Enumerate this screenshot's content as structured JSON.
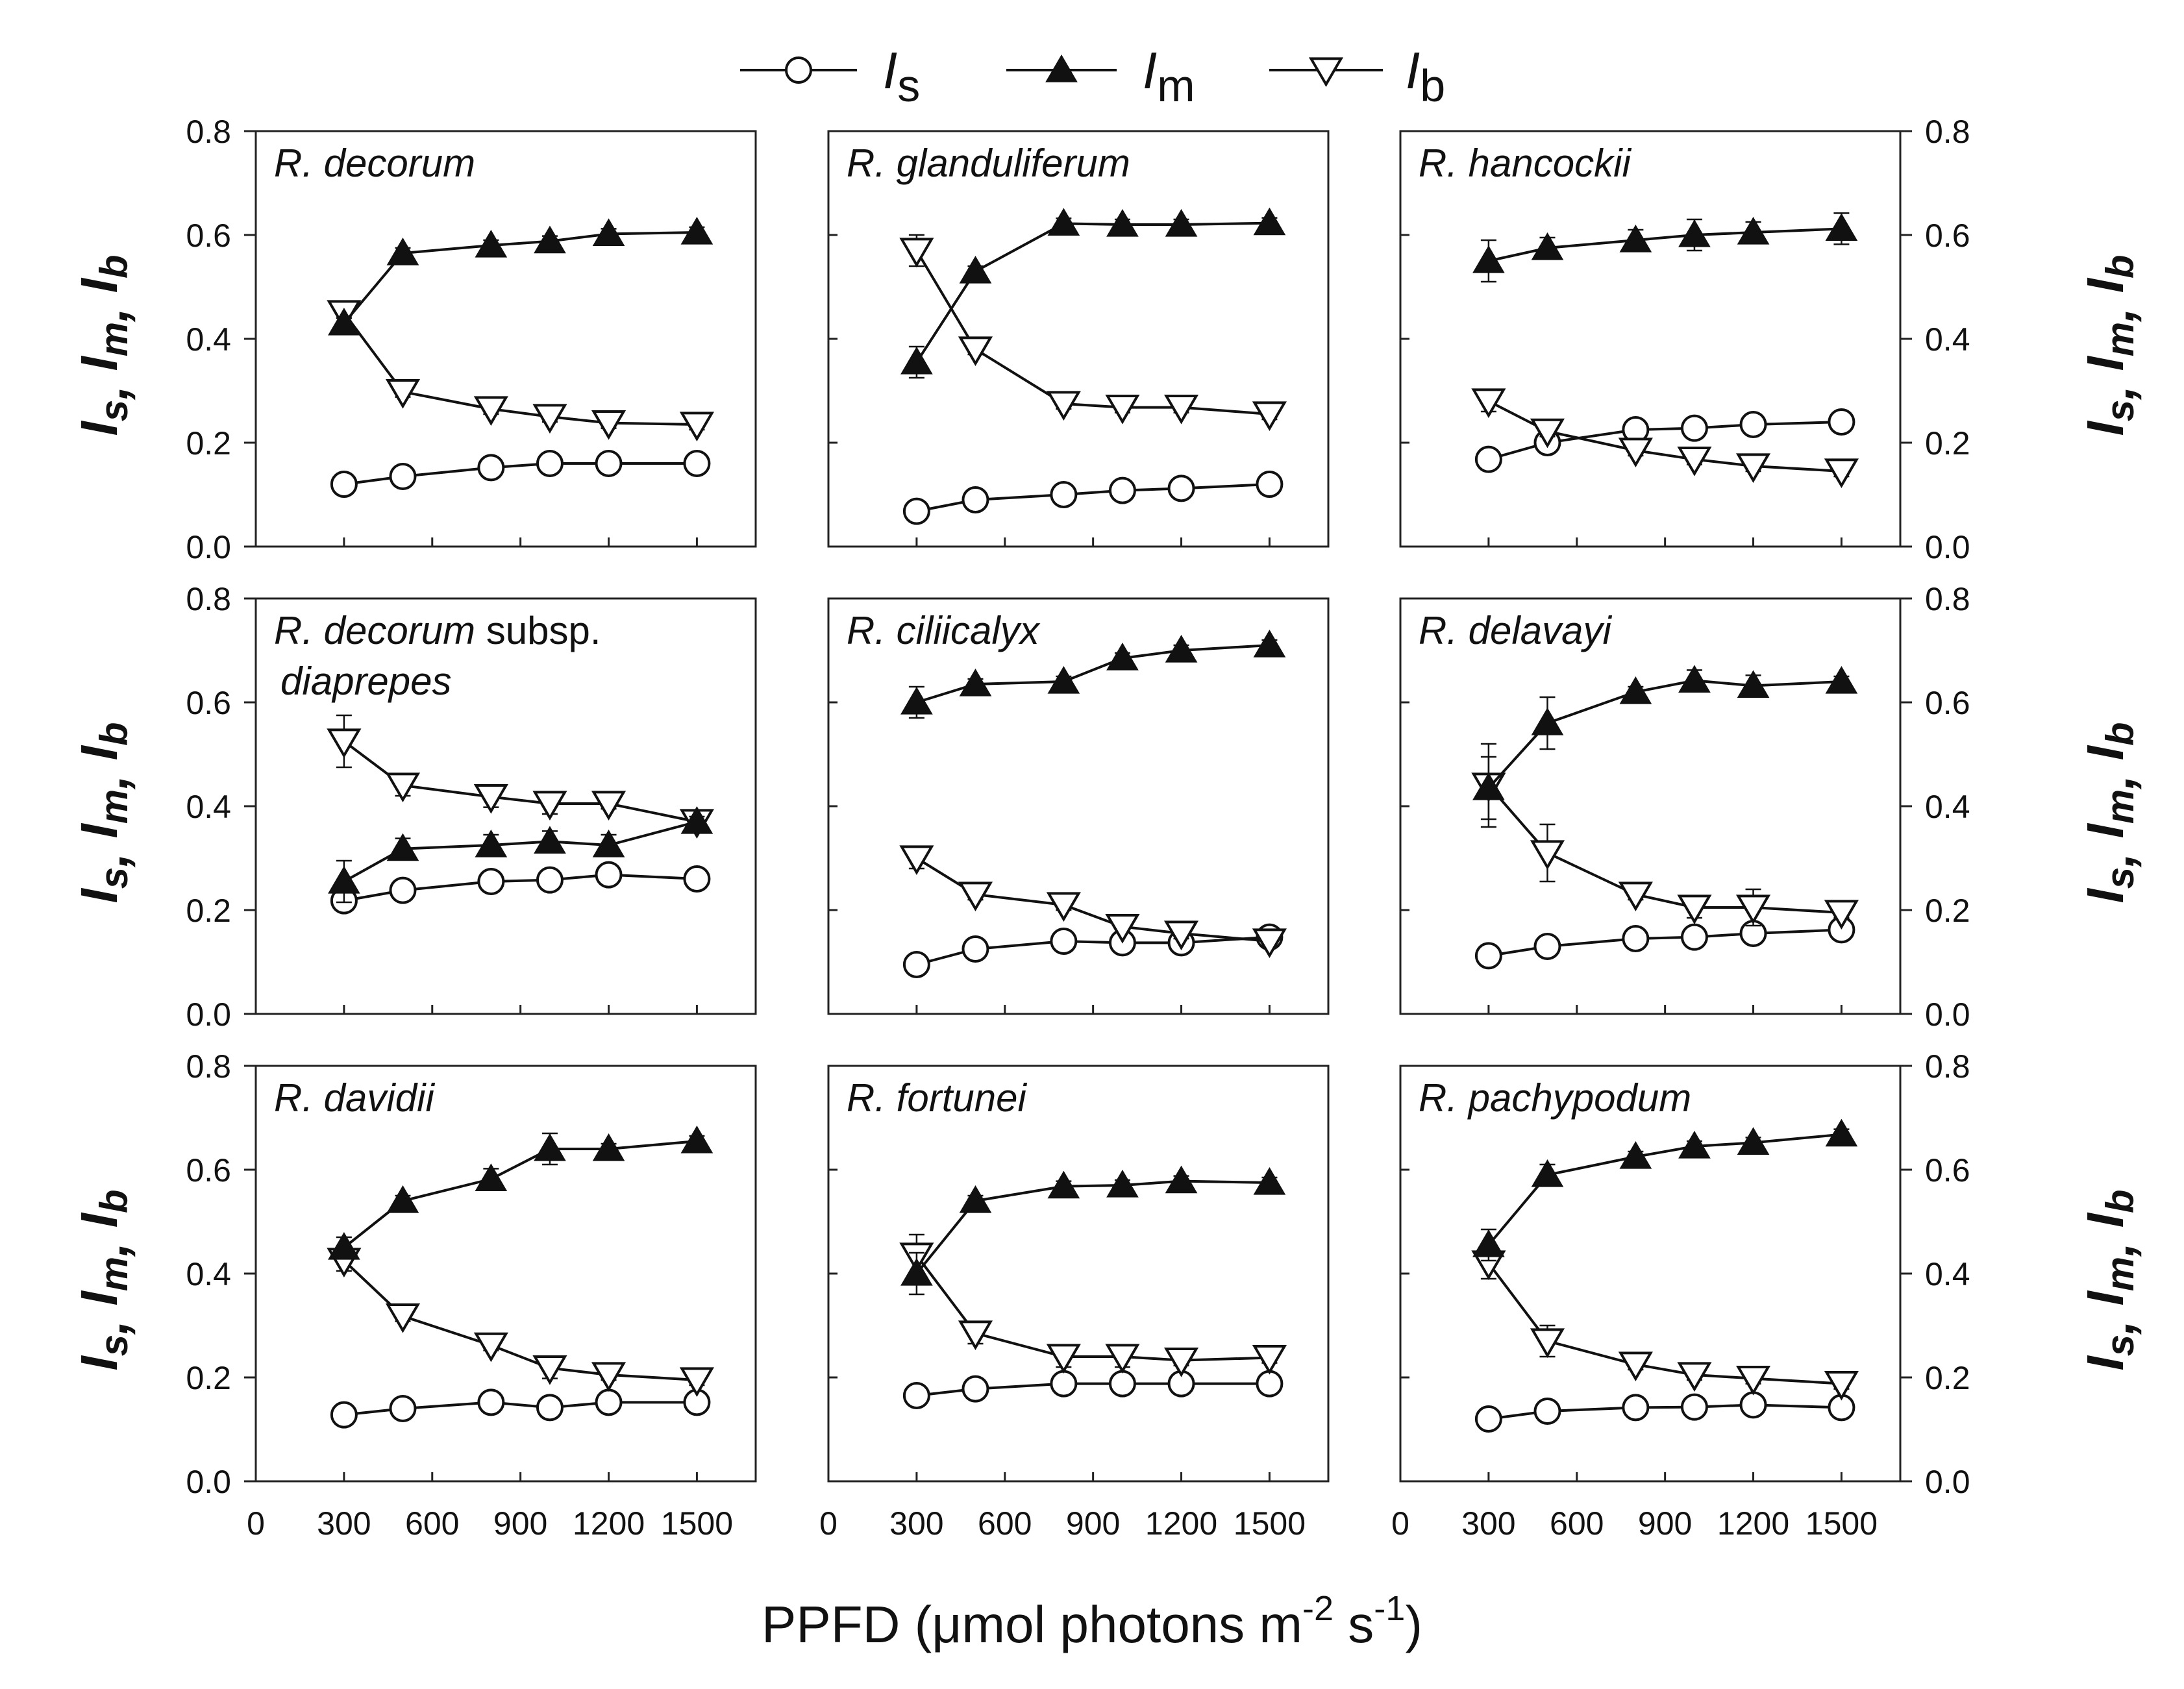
{
  "chart_data": {
    "type": "line",
    "layout": "3x3 panel grid",
    "xlabel": "PPFD (μmol photons m",
    "xlabel_sup1": "-2",
    "xlabel_mid": " s",
    "xlabel_sup2": "-1",
    "xlabel_end": ")",
    "ylabel": "I",
    "ylabel_subs": [
      "s",
      "m",
      "b"
    ],
    "xticks": [
      0,
      300,
      600,
      900,
      1200,
      1500
    ],
    "xticklabels": [
      "0",
      "300",
      "600",
      "900",
      "1200",
      "1500"
    ],
    "xlim": [
      0,
      1700
    ],
    "yticks": [
      0.0,
      0.2,
      0.4,
      0.6,
      0.8
    ],
    "yticklabels": [
      "0.0",
      "0.2",
      "0.4",
      "0.6",
      "0.8"
    ],
    "ylim": [
      0,
      0.8
    ],
    "x": [
      300,
      500,
      800,
      1000,
      1200,
      1500
    ],
    "legend": [
      {
        "key": "Is",
        "base": "I",
        "sub": "s",
        "marker": "circle-open"
      },
      {
        "key": "Im",
        "base": "I",
        "sub": "m",
        "marker": "triangle-up-filled"
      },
      {
        "key": "Ib",
        "base": "I",
        "sub": "b",
        "marker": "triangle-down-open"
      }
    ],
    "panels": [
      {
        "title": "R. decorum",
        "series": {
          "Is": {
            "values": [
              0.12,
              0.135,
              0.152,
              0.16,
              0.16,
              0.16
            ],
            "errors": [
              0.005,
              0.005,
              0.005,
              0.005,
              0.005,
              0.005
            ]
          },
          "Im": {
            "values": [
              0.43,
              0.565,
              0.58,
              0.588,
              0.602,
              0.605
            ],
            "errors": [
              0.01,
              0.01,
              0.01,
              0.01,
              0.01,
              0.01
            ]
          },
          "Ib": {
            "values": [
              0.45,
              0.298,
              0.265,
              0.25,
              0.238,
              0.235
            ],
            "errors": [
              0.01,
              0.01,
              0.01,
              0.01,
              0.01,
              0.01
            ]
          }
        }
      },
      {
        "title": "R. glanduliferum",
        "series": {
          "Is": {
            "values": [
              0.068,
              0.09,
              0.1,
              0.108,
              0.112,
              0.12
            ],
            "errors": [
              0.005,
              0.005,
              0.005,
              0.005,
              0.005,
              0.005
            ]
          },
          "Im": {
            "values": [
              0.355,
              0.53,
              0.622,
              0.62,
              0.62,
              0.623
            ],
            "errors": [
              0.03,
              0.01,
              0.01,
              0.01,
              0.01,
              0.01
            ]
          },
          "Ib": {
            "values": [
              0.57,
              0.38,
              0.275,
              0.268,
              0.268,
              0.255
            ],
            "errors": [
              0.03,
              0.01,
              0.01,
              0.01,
              0.01,
              0.01
            ]
          }
        }
      },
      {
        "title": "R. hancockii",
        "series": {
          "Is": {
            "values": [
              0.168,
              0.2,
              0.225,
              0.228,
              0.235,
              0.24
            ],
            "errors": [
              0.005,
              0.005,
              0.005,
              0.005,
              0.005,
              0.005
            ]
          },
          "Im": {
            "values": [
              0.55,
              0.575,
              0.59,
              0.6,
              0.605,
              0.612
            ],
            "errors": [
              0.04,
              0.02,
              0.02,
              0.03,
              0.02,
              0.03
            ]
          },
          "Ib": {
            "values": [
              0.28,
              0.222,
              0.185,
              0.168,
              0.155,
              0.145
            ],
            "errors": [
              0.02,
              0.01,
              0.01,
              0.01,
              0.01,
              0.01
            ]
          }
        }
      },
      {
        "title": "R. decorum",
        "title_suffix": " subsp.",
        "title_line2": "diaprepes",
        "series": {
          "Is": {
            "values": [
              0.218,
              0.238,
              0.255,
              0.258,
              0.268,
              0.26
            ],
            "errors": [
              0.005,
              0.005,
              0.005,
              0.005,
              0.005,
              0.005
            ]
          },
          "Im": {
            "values": [
              0.255,
              0.318,
              0.325,
              0.332,
              0.325,
              0.37
            ],
            "errors": [
              0.04,
              0.02,
              0.02,
              0.02,
              0.02,
              0.01
            ]
          },
          "Ib": {
            "values": [
              0.525,
              0.44,
              0.418,
              0.405,
              0.405,
              0.37
            ],
            "errors": [
              0.05,
              0.02,
              0.02,
              0.02,
              0.01,
              0.01
            ]
          }
        }
      },
      {
        "title": "R. ciliicalyx",
        "series": {
          "Is": {
            "values": [
              0.095,
              0.125,
              0.14,
              0.137,
              0.137,
              0.148
            ],
            "errors": [
              0.005,
              0.005,
              0.005,
              0.005,
              0.005,
              0.005
            ]
          },
          "Im": {
            "values": [
              0.6,
              0.635,
              0.64,
              0.685,
              0.7,
              0.71
            ],
            "errors": [
              0.03,
              0.01,
              0.01,
              0.01,
              0.01,
              0.01
            ]
          },
          "Ib": {
            "values": [
              0.3,
              0.23,
              0.21,
              0.168,
              0.155,
              0.14
            ],
            "errors": [
              0.02,
              0.01,
              0.01,
              0.01,
              0.01,
              0.01
            ]
          }
        }
      },
      {
        "title": "R. delavayi",
        "series": {
          "Is": {
            "values": [
              0.112,
              0.13,
              0.145,
              0.148,
              0.155,
              0.162
            ],
            "errors": [
              0.005,
              0.005,
              0.005,
              0.005,
              0.005,
              0.005
            ]
          },
          "Im": {
            "values": [
              0.435,
              0.56,
              0.62,
              0.642,
              0.632,
              0.64
            ],
            "errors": [
              0.06,
              0.05,
              0.01,
              0.02,
              0.02,
              0.01
            ]
          },
          "Ib": {
            "values": [
              0.44,
              0.31,
              0.23,
              0.205,
              0.205,
              0.195
            ],
            "errors": [
              0.08,
              0.055,
              0.01,
              0.02,
              0.035,
              0.01
            ]
          }
        }
      },
      {
        "title": "R. davidii",
        "series": {
          "Is": {
            "values": [
              0.128,
              0.14,
              0.152,
              0.142,
              0.152,
              0.152
            ],
            "errors": [
              0.005,
              0.005,
              0.005,
              0.005,
              0.005,
              0.005
            ]
          },
          "Im": {
            "values": [
              0.45,
              0.54,
              0.582,
              0.64,
              0.64,
              0.655
            ],
            "errors": [
              0.02,
              0.01,
              0.02,
              0.03,
              0.01,
              0.01
            ]
          },
          "Ib": {
            "values": [
              0.425,
              0.318,
              0.262,
              0.218,
              0.205,
              0.195
            ],
            "errors": [
              0.02,
              0.01,
              0.01,
              0.02,
              0.01,
              0.01
            ]
          }
        }
      },
      {
        "title": "R. fortunei",
        "series": {
          "Is": {
            "values": [
              0.165,
              0.178,
              0.188,
              0.188,
              0.188,
              0.188
            ],
            "errors": [
              0.005,
              0.005,
              0.005,
              0.005,
              0.005,
              0.005
            ]
          },
          "Im": {
            "values": [
              0.4,
              0.54,
              0.568,
              0.57,
              0.578,
              0.575
            ],
            "errors": [
              0.04,
              0.01,
              0.01,
              0.01,
              0.01,
              0.01
            ]
          },
          "Ib": {
            "values": [
              0.435,
              0.285,
              0.24,
              0.24,
              0.233,
              0.238
            ],
            "errors": [
              0.04,
              0.02,
              0.02,
              0.02,
              0.01,
              0.01
            ]
          }
        }
      },
      {
        "title": "R.  pachypodum",
        "series": {
          "Is": {
            "values": [
              0.12,
              0.135,
              0.142,
              0.143,
              0.147,
              0.142
            ],
            "errors": [
              0.005,
              0.005,
              0.005,
              0.005,
              0.005,
              0.005
            ]
          },
          "Im": {
            "values": [
              0.455,
              0.59,
              0.625,
              0.645,
              0.652,
              0.668
            ],
            "errors": [
              0.03,
              0.02,
              0.01,
              0.01,
              0.01,
              0.01
            ]
          },
          "Ib": {
            "values": [
              0.42,
              0.27,
              0.225,
              0.205,
              0.198,
              0.188
            ],
            "errors": [
              0.03,
              0.03,
              0.01,
              0.01,
              0.01,
              0.01
            ]
          }
        }
      }
    ]
  }
}
